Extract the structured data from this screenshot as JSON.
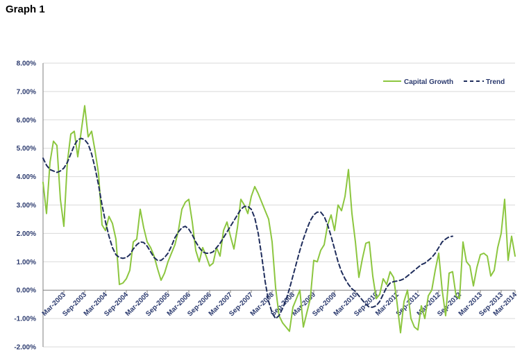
{
  "title": "Graph 1",
  "colors": {
    "capital_growth": "#8cc63f",
    "trend": "#1f2d5c",
    "grid": "#d9d9d9",
    "axis": "#7f7f7f",
    "text": "#2b3a6e"
  },
  "chart_data": {
    "type": "line",
    "title": "",
    "xlabel": "",
    "ylabel": "",
    "ylim": [
      -2.0,
      8.0
    ],
    "y_ticks": [
      "8.00%",
      "7.00%",
      "6.00%",
      "5.00%",
      "4.00%",
      "3.00%",
      "2.00%",
      "1.00%",
      "0.00%",
      "-1.00%",
      "-2.00%"
    ],
    "x_tick_labels": [
      "Mar-2003",
      "Sep-2003",
      "Mar-2004",
      "Sep-2004",
      "Mar-2005",
      "Sep-2005",
      "Mar-2006",
      "Sep-2006",
      "Mar-2007",
      "Sep-2007",
      "Mar-2008",
      "Sep-2008",
      "Mar-2009",
      "Sep-2009",
      "Mar-2010",
      "Sep-2010",
      "Mar-2011",
      "Sep-2011",
      "Mar-2012",
      "Sep-2012",
      "Mar-2013",
      "Sep-2013",
      "Mar-2014"
    ],
    "grid": true,
    "legend": {
      "position": "top-right",
      "entries": [
        "Capital Growth",
        "Trend"
      ]
    },
    "series": [
      {
        "name": "Capital Growth",
        "style": "solid",
        "values": [
          3.8,
          2.7,
          4.5,
          5.25,
          5.1,
          3.2,
          2.25,
          4.5,
          5.5,
          5.6,
          4.7,
          5.6,
          6.5,
          5.4,
          5.6,
          4.9,
          4.1,
          2.3,
          2.1,
          2.6,
          2.35,
          1.8,
          0.2,
          0.25,
          0.4,
          0.7,
          1.7,
          1.8,
          2.85,
          2.2,
          1.7,
          1.5,
          1.2,
          0.75,
          0.35,
          0.6,
          1.0,
          1.3,
          1.6,
          2.1,
          2.85,
          3.1,
          3.2,
          2.4,
          1.4,
          1.0,
          1.5,
          1.2,
          0.85,
          0.95,
          1.5,
          1.2,
          2.1,
          2.4,
          1.9,
          1.45,
          2.2,
          3.2,
          3.0,
          2.7,
          3.3,
          3.65,
          3.4,
          3.1,
          2.8,
          2.5,
          1.7,
          0.1,
          -0.9,
          -1.15,
          -1.3,
          -1.45,
          -0.6,
          -0.3,
          0.0,
          -1.3,
          -0.8,
          -0.3,
          1.05,
          1.0,
          1.4,
          1.6,
          2.3,
          2.65,
          2.1,
          3.0,
          2.8,
          3.3,
          4.25,
          2.7,
          1.7,
          0.45,
          1.1,
          1.65,
          1.7,
          0.5,
          -0.3,
          -0.15,
          0.4,
          0.2,
          0.65,
          0.45,
          -0.45,
          -1.5,
          -0.4,
          0.0,
          -1.0,
          -1.3,
          -1.4,
          -0.55,
          -1.0,
          -0.2,
          0.0,
          0.7,
          1.3,
          0.0,
          -0.9,
          0.6,
          0.65,
          -0.2,
          -0.3,
          1.7,
          1.0,
          0.85,
          0.15,
          0.8,
          1.25,
          1.3,
          1.2,
          0.5,
          0.7,
          1.5,
          2.0,
          3.2,
          1.05,
          1.9,
          1.2
        ]
      },
      {
        "name": "Trend",
        "style": "dashed",
        "values": [
          4.65,
          4.4,
          4.25,
          4.2,
          4.15,
          4.2,
          4.3,
          4.5,
          4.8,
          5.1,
          5.3,
          5.35,
          5.3,
          5.15,
          4.8,
          4.3,
          3.7,
          3.0,
          2.4,
          1.9,
          1.5,
          1.25,
          1.15,
          1.12,
          1.15,
          1.25,
          1.45,
          1.6,
          1.7,
          1.68,
          1.55,
          1.35,
          1.15,
          1.05,
          1.05,
          1.15,
          1.3,
          1.55,
          1.85,
          2.05,
          2.2,
          2.25,
          2.15,
          1.95,
          1.7,
          1.5,
          1.35,
          1.3,
          1.3,
          1.35,
          1.5,
          1.65,
          1.85,
          2.05,
          2.25,
          2.45,
          2.65,
          2.85,
          2.95,
          2.95,
          2.85,
          2.55,
          2.0,
          1.2,
          0.3,
          -0.4,
          -0.8,
          -1.0,
          -0.9,
          -0.65,
          -0.35,
          0.05,
          0.5,
          0.95,
          1.4,
          1.8,
          2.15,
          2.45,
          2.65,
          2.75,
          2.75,
          2.6,
          2.3,
          1.9,
          1.45,
          1.0,
          0.65,
          0.4,
          0.2,
          0.05,
          -0.05,
          -0.2,
          -0.35,
          -0.5,
          -0.6,
          -0.6,
          -0.55,
          -0.4,
          -0.15,
          0.1,
          0.25,
          0.3,
          0.32,
          0.35,
          0.4,
          0.5,
          0.6,
          0.7,
          0.8,
          0.9,
          0.95,
          1.05,
          1.15,
          1.3,
          1.5,
          1.7,
          1.8,
          1.88,
          1.9
        ]
      }
    ]
  }
}
